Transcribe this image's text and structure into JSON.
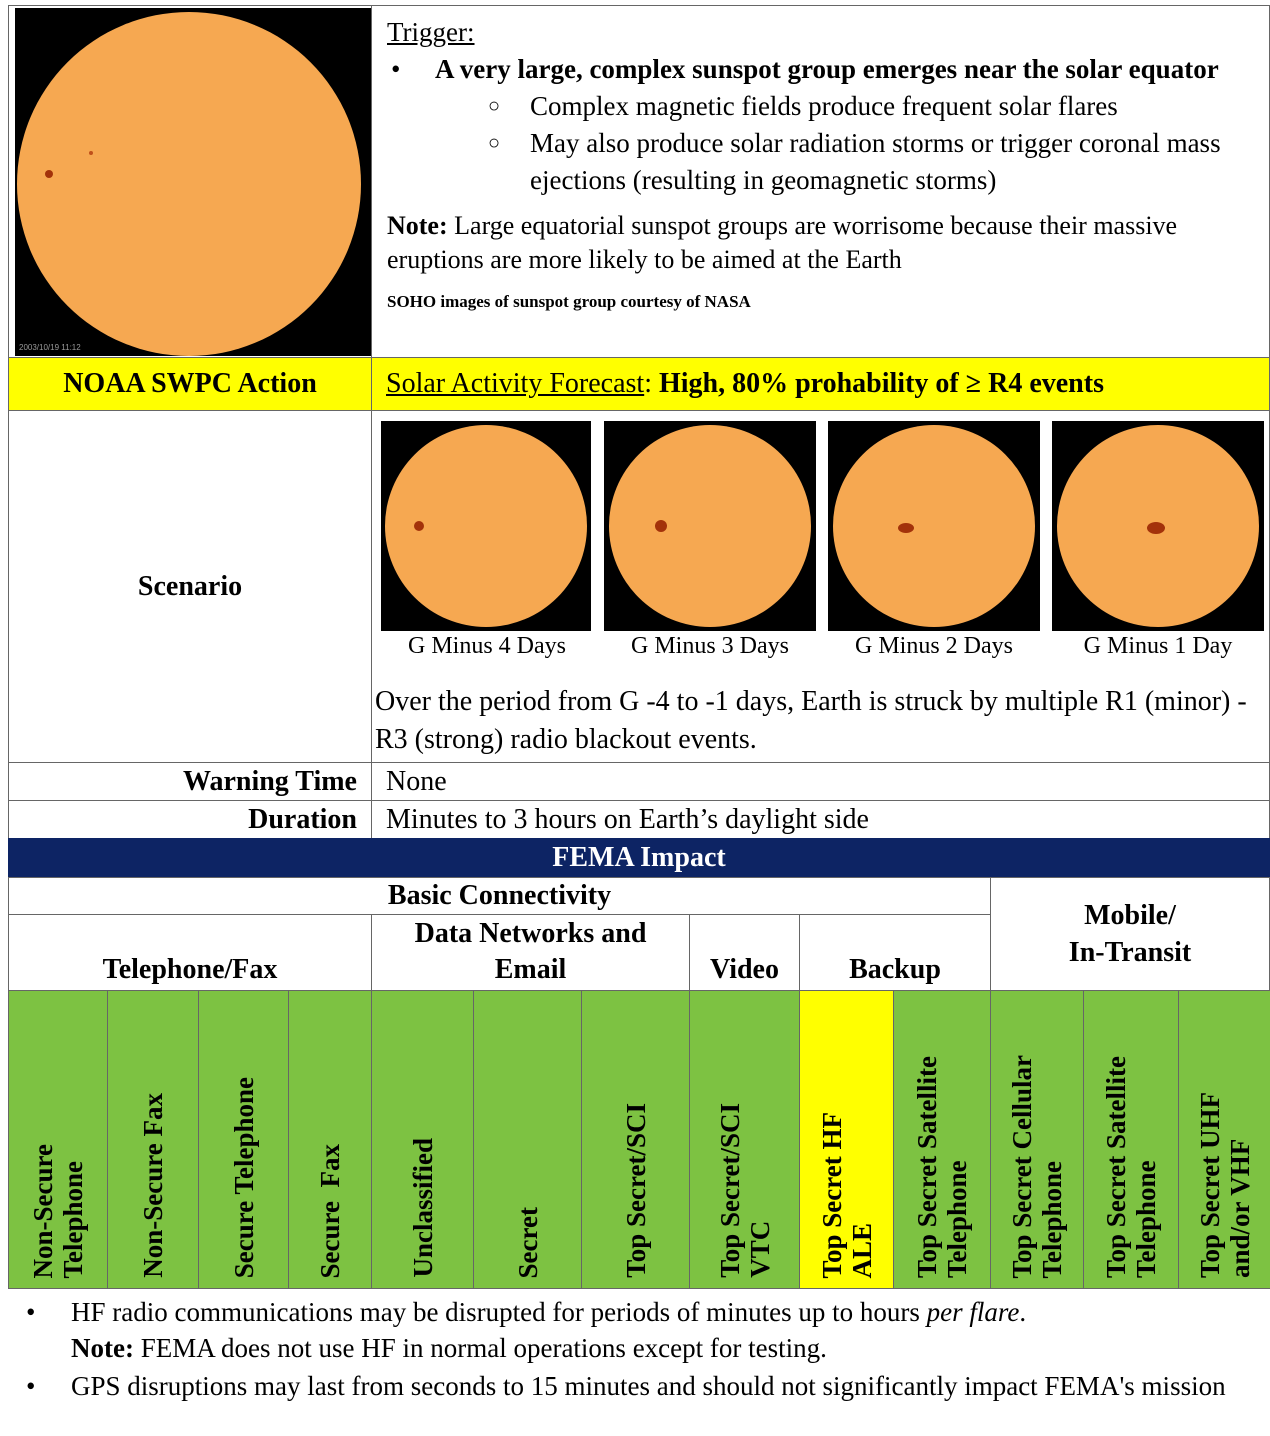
{
  "trigger": {
    "heading": "Trigger:",
    "bullet": "A very large, complex sunspot group emerges near the solar equator",
    "sub_bullets": [
      "Complex magnetic fields produce frequent solar flares",
      "May also produce solar radiation storms or trigger coronal mass ejections (resulting in geomagnetic storms)"
    ],
    "note_label": "Note:",
    "note": " Large equatorial sunspot groups are worrisome because their massive eruptions are more likely to be aimed at the Earth",
    "credit": "SOHO images of sunspot group courtesy of NASA",
    "image_timestamp": "2003/10/19 11:12"
  },
  "action": {
    "label": "NOAA SWPC Action",
    "forecast_label": "Solar Activity Forecast",
    "forecast_separator": ":",
    "forecast": " High, 80% prohability of ≥ R4 events"
  },
  "scenario": {
    "label": "Scenario",
    "captions": [
      "G Minus 4 Days",
      "G Minus 3 Days",
      "G Minus 2 Days",
      "G Minus 1 Day"
    ],
    "description": "Over the period from G -4 to -1 days, Earth is struck by multiple R1 (minor) - R3 (strong) radio blackout events."
  },
  "warning_time": {
    "label": "Warning Time",
    "value": "None"
  },
  "duration": {
    "label": "Duration",
    "value": "Minutes to 3 hours on Earth’s daylight side"
  },
  "fema_impact": {
    "title": "FEMA Impact",
    "basic_connectivity": "Basic Connectivity",
    "mobile": [
      "Mobile/",
      "In-Transit"
    ],
    "groups": [
      [
        "Telephone/Fax"
      ],
      [
        "Data Networks and",
        "Email"
      ],
      [
        "Video"
      ],
      [
        "Backup"
      ]
    ],
    "columns": [
      {
        "label": [
          "Non-Secure",
          "Telephone"
        ],
        "color": "#7dc242"
      },
      {
        "label": [
          "Non-Secure Fax"
        ],
        "color": "#7dc242"
      },
      {
        "label": [
          "Secure Telephone"
        ],
        "color": "#7dc242"
      },
      {
        "label": [
          "Secure  Fax"
        ],
        "color": "#7dc242"
      },
      {
        "label": [
          "Unclassified"
        ],
        "color": "#7dc242"
      },
      {
        "label": [
          "Secret"
        ],
        "color": "#7dc242"
      },
      {
        "label": [
          "Top Secret/SCI"
        ],
        "color": "#7dc242"
      },
      {
        "label": [
          "Top Secret/SCI",
          "VTC"
        ],
        "color": "#7dc242"
      },
      {
        "label": [
          "Top Secret HF",
          "ALE"
        ],
        "color": "#ffff00"
      },
      {
        "label": [
          "Top Secret Satellite",
          "Telephone"
        ],
        "color": "#7dc242"
      },
      {
        "label": [
          "Top Secret Cellular",
          "Telephone"
        ],
        "color": "#7dc242"
      },
      {
        "label": [
          "Top Secret Satellite",
          "Telephone"
        ],
        "color": "#7dc242"
      },
      {
        "label": [
          "Top Secret UHF",
          "and/or VHF"
        ],
        "color": "#7dc242"
      }
    ]
  },
  "notes": [
    {
      "text": "HF radio communications may be disrupted for periods of minutes up to hours ",
      "italic": "per flare",
      "end": ".",
      "note_label": "Note:",
      "note": " FEMA does not use HF in normal operations except for testing."
    },
    {
      "text": "GPS disruptions may last from seconds to 15 minutes and should not significantly impact FEMA's mission"
    }
  ]
}
